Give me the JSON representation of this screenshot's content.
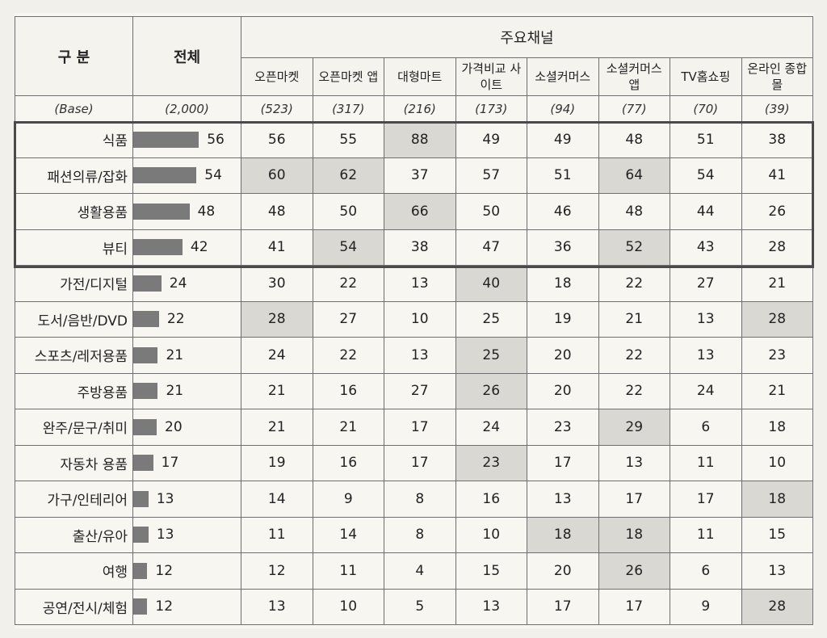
{
  "header": {
    "category": "구 분",
    "total": "전체",
    "group": "주요채널",
    "channels": [
      "오픈마켓",
      "오픈마켓 앱",
      "대형마트",
      "가격비교 사이트",
      "소셜커머스",
      "소셜커머스 앱",
      "TV홈쇼핑",
      "온라인 종합몰"
    ]
  },
  "base": {
    "label": "(Base)",
    "total": "(2,000)",
    "channels": [
      "(523)",
      "(317)",
      "(216)",
      "(173)",
      "(94)",
      "(77)",
      "(70)",
      "(39)"
    ]
  },
  "chart_data": {
    "type": "table",
    "columns": [
      "전체",
      "오픈마켓",
      "오픈마켓 앱",
      "대형마트",
      "가격비교 사이트",
      "소셜커머스",
      "소셜커머스 앱",
      "TV홈쇼핑",
      "온라인 종합몰"
    ],
    "rows": [
      {
        "label": "식품",
        "total": 56,
        "values": [
          56,
          55,
          88,
          49,
          49,
          48,
          51,
          38
        ]
      },
      {
        "label": "패션의류/잡화",
        "total": 54,
        "values": [
          60,
          62,
          37,
          57,
          51,
          64,
          54,
          41
        ]
      },
      {
        "label": "생활용품",
        "total": 48,
        "values": [
          48,
          50,
          66,
          50,
          46,
          48,
          44,
          26
        ]
      },
      {
        "label": "뷰티",
        "total": 42,
        "values": [
          41,
          54,
          38,
          47,
          36,
          52,
          43,
          28
        ]
      },
      {
        "label": "가전/디지털",
        "total": 24,
        "values": [
          30,
          22,
          13,
          40,
          18,
          22,
          27,
          21
        ]
      },
      {
        "label": "도서/음반/DVD",
        "total": 22,
        "values": [
          28,
          27,
          10,
          25,
          19,
          21,
          13,
          28
        ]
      },
      {
        "label": "스포츠/레저용품",
        "total": 21,
        "values": [
          24,
          22,
          13,
          25,
          20,
          22,
          13,
          23
        ]
      },
      {
        "label": "주방용품",
        "total": 21,
        "values": [
          21,
          16,
          27,
          26,
          20,
          22,
          24,
          21
        ]
      },
      {
        "label": "완주/문구/취미",
        "total": 20,
        "values": [
          21,
          21,
          17,
          24,
          23,
          29,
          6,
          18
        ]
      },
      {
        "label": "자동차 용품",
        "total": 17,
        "values": [
          19,
          16,
          17,
          23,
          17,
          13,
          11,
          10
        ]
      },
      {
        "label": "가구/인테리어",
        "total": 13,
        "values": [
          14,
          9,
          8,
          16,
          13,
          17,
          17,
          18
        ]
      },
      {
        "label": "출산/유아",
        "total": 13,
        "values": [
          11,
          14,
          8,
          10,
          18,
          18,
          11,
          15
        ]
      },
      {
        "label": "여행",
        "total": 12,
        "values": [
          12,
          11,
          4,
          15,
          20,
          26,
          6,
          13
        ]
      },
      {
        "label": "공연/전시/체험",
        "total": 12,
        "values": [
          13,
          10,
          5,
          13,
          17,
          17,
          9,
          28
        ]
      }
    ],
    "shaded": [
      [
        0,
        2
      ],
      [
        1,
        0
      ],
      [
        1,
        1
      ],
      [
        1,
        5
      ],
      [
        2,
        2
      ],
      [
        3,
        1
      ],
      [
        3,
        5
      ],
      [
        4,
        3
      ],
      [
        5,
        0
      ],
      [
        5,
        7
      ],
      [
        6,
        3
      ],
      [
        7,
        3
      ],
      [
        8,
        5
      ],
      [
        9,
        3
      ],
      [
        10,
        7
      ],
      [
        11,
        4
      ],
      [
        11,
        5
      ],
      [
        12,
        5
      ],
      [
        13,
        7
      ]
    ],
    "highlighted_rows": [
      0,
      1,
      2,
      3
    ]
  }
}
